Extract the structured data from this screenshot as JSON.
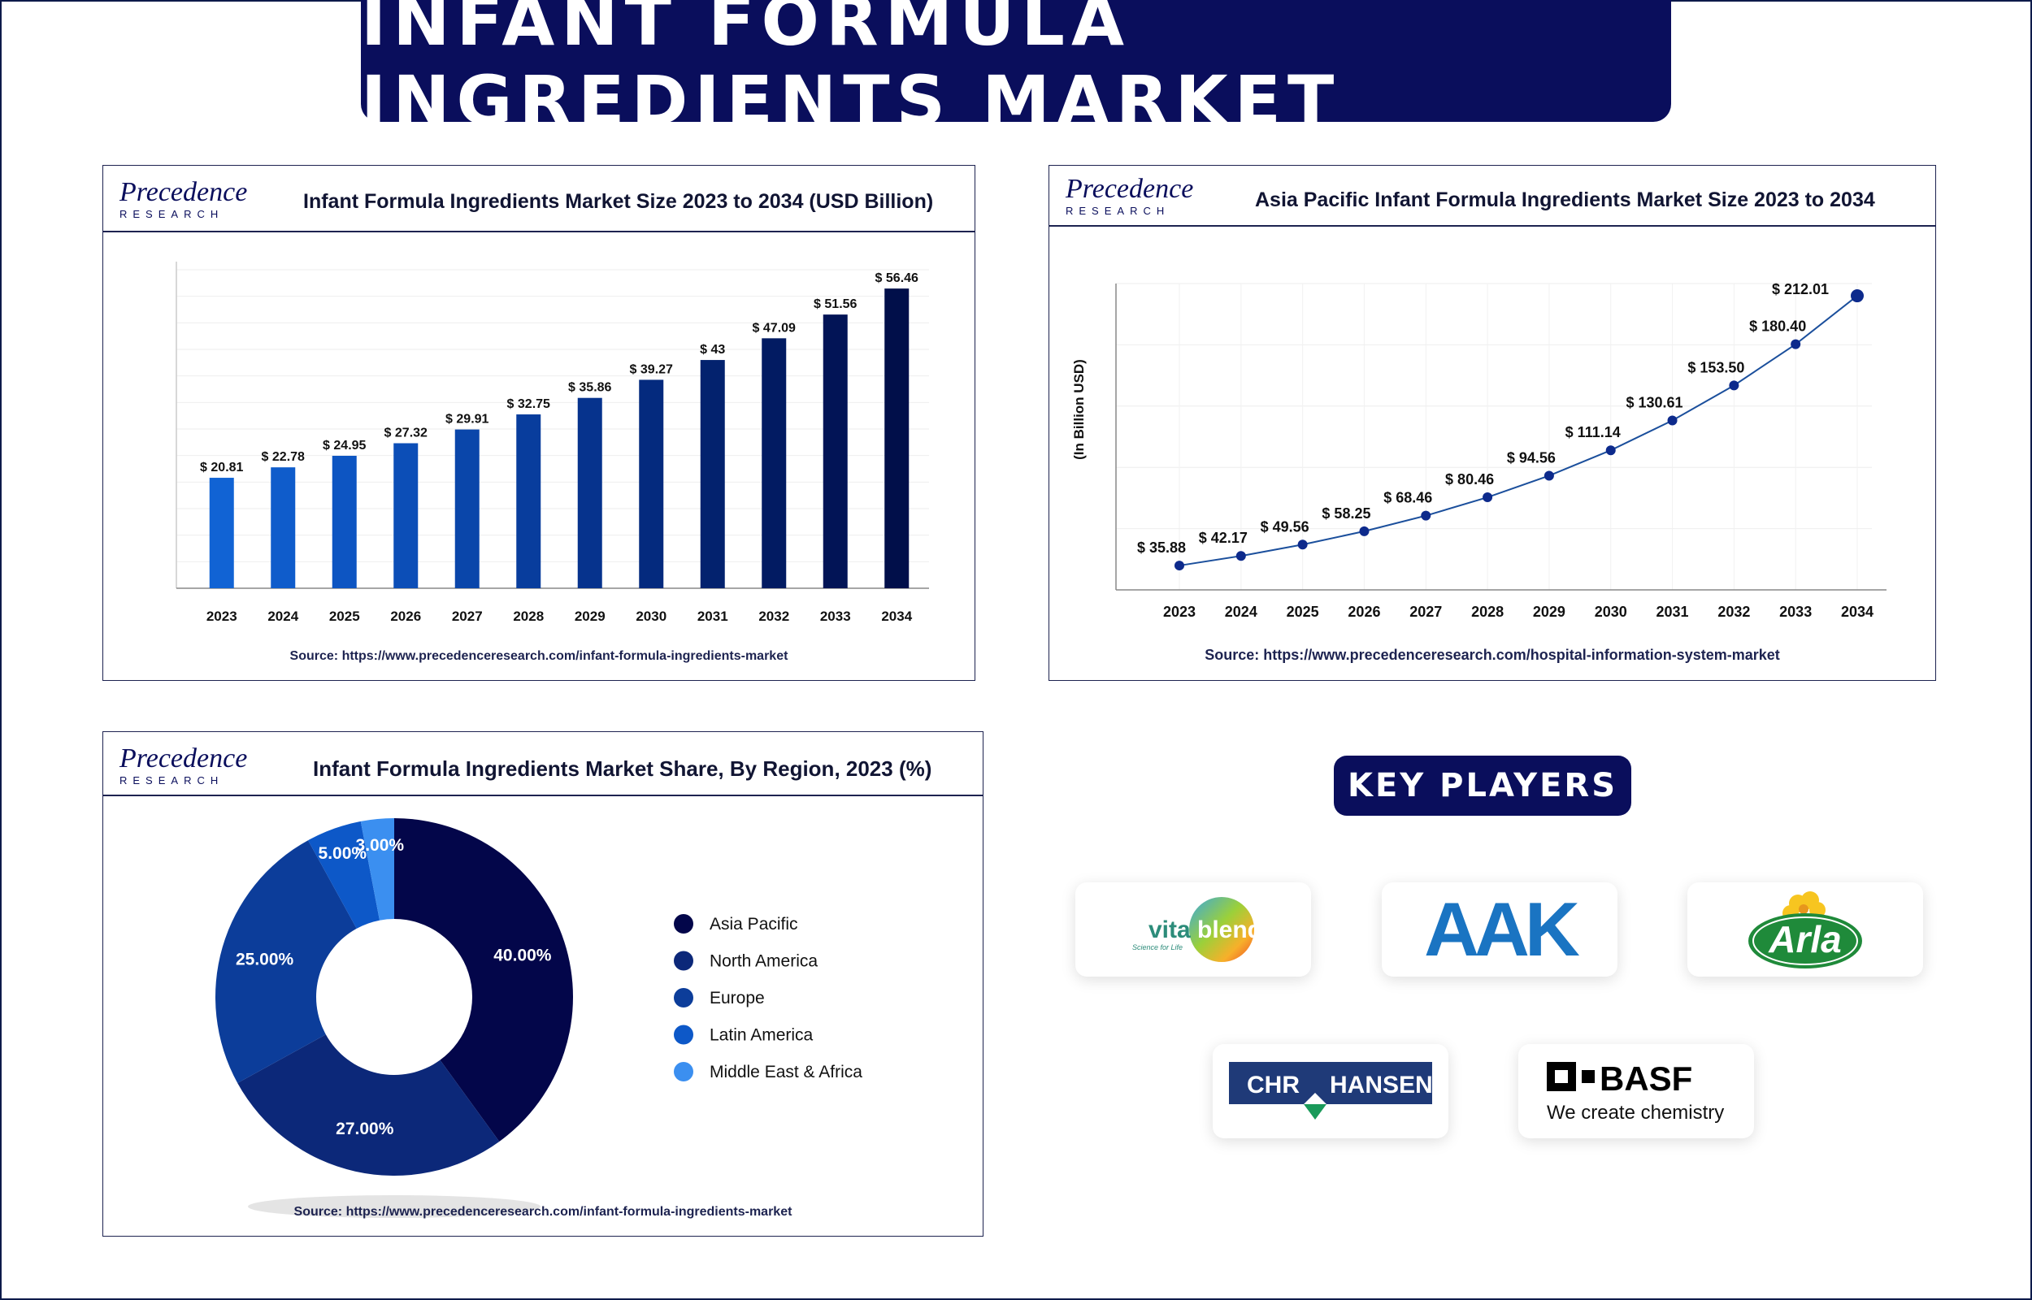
{
  "header": {
    "title": "INFANT FORMULA INGREDIENTS MARKET"
  },
  "brand": {
    "logo_text": "Precedence",
    "logo_sub": "RESEARCH",
    "navy": "#0a0e5c",
    "accent": "#1e7ae0"
  },
  "chart_data": [
    {
      "type": "bar",
      "title": "Infant Formula Ingredients Market Size 2023 to 2034 (USD Billion)",
      "categories": [
        "2023",
        "2024",
        "2025",
        "2026",
        "2027",
        "2028",
        "2029",
        "2030",
        "2031",
        "2032",
        "2033",
        "2034"
      ],
      "values": [
        20.81,
        22.78,
        24.95,
        27.32,
        29.91,
        32.75,
        35.86,
        39.27,
        43,
        47.09,
        51.56,
        56.46
      ],
      "labels": [
        "$ 20.81",
        "$ 22.78",
        "$ 24.95",
        "$ 27.32",
        "$ 29.91",
        "$ 32.75",
        "$ 35.86",
        "$ 39.27",
        "$ 43",
        "$ 47.09",
        "$ 51.56",
        "$ 56.46"
      ],
      "colors": [
        "#1163d4",
        "#0f5ccb",
        "#0d55c2",
        "#0c4eb7",
        "#0a46aa",
        "#083d9d",
        "#06338d",
        "#042a7e",
        "#03226e",
        "#021b62",
        "#021456",
        "#010f4a"
      ],
      "ylim": [
        0,
        60
      ],
      "source": "Source: https://www.precedenceresearch.com/infant-formula-ingredients-market"
    },
    {
      "type": "line",
      "title": "Asia Pacific Infant Formula Ingredients Market Size 2023 to 2034",
      "ylabel": "(In Billion USD)",
      "x": [
        "2023",
        "2024",
        "2025",
        "2026",
        "2027",
        "2028",
        "2029",
        "2030",
        "2031",
        "2032",
        "2033",
        "2034"
      ],
      "y": [
        35.88,
        42.17,
        49.56,
        58.25,
        68.46,
        80.46,
        94.56,
        111.14,
        130.61,
        153.5,
        180.4,
        212.01
      ],
      "labels": [
        "$ 35.88",
        "$ 42.17",
        "$ 49.56",
        "$ 58.25",
        "$ 68.46",
        "$ 80.46",
        "$ 94.56",
        "$ 111.14",
        "$ 130.61",
        "$ 153.50",
        "$ 180.40",
        "$ 212.01"
      ],
      "ylim": [
        20,
        220
      ],
      "grid": true,
      "line_color": "#1b4f9c",
      "source": "Source: https://www.precedenceresearch.com/hospital-information-system-market"
    },
    {
      "type": "pie",
      "title": "Infant Formula Ingredients Market Share, By Region, 2023 (%)",
      "categories": [
        "Asia Pacific",
        "North America",
        "Europe",
        "Latin America",
        "Middle East & Africa"
      ],
      "values": [
        40,
        27,
        25,
        5,
        3
      ],
      "labels": [
        "40.00%",
        "27.00%",
        "25.00%",
        "5.00%",
        "3.00%"
      ],
      "colors": [
        "#03064a",
        "#0c2879",
        "#0c3d9a",
        "#0d58c8",
        "#3b8ff0"
      ],
      "legend": "right",
      "source": "Source: https://www.precedenceresearch.com/infant-formula-ingredients-market"
    }
  ],
  "key_players": {
    "title": "KEY PLAYERS",
    "vitablend": {
      "word1": "vita",
      "word2": "blend",
      "tagline": "Science for Life"
    },
    "aak": {
      "name": "AAK",
      "color": "#1a74c2"
    },
    "arla": {
      "name": "Arla",
      "color": "#1f8a3a"
    },
    "chr_hansen": {
      "left": "CHR",
      "right": "HANSEN",
      "color": "#1f3a78"
    },
    "basf": {
      "name": "BASF",
      "tagline": "We create chemistry"
    }
  }
}
